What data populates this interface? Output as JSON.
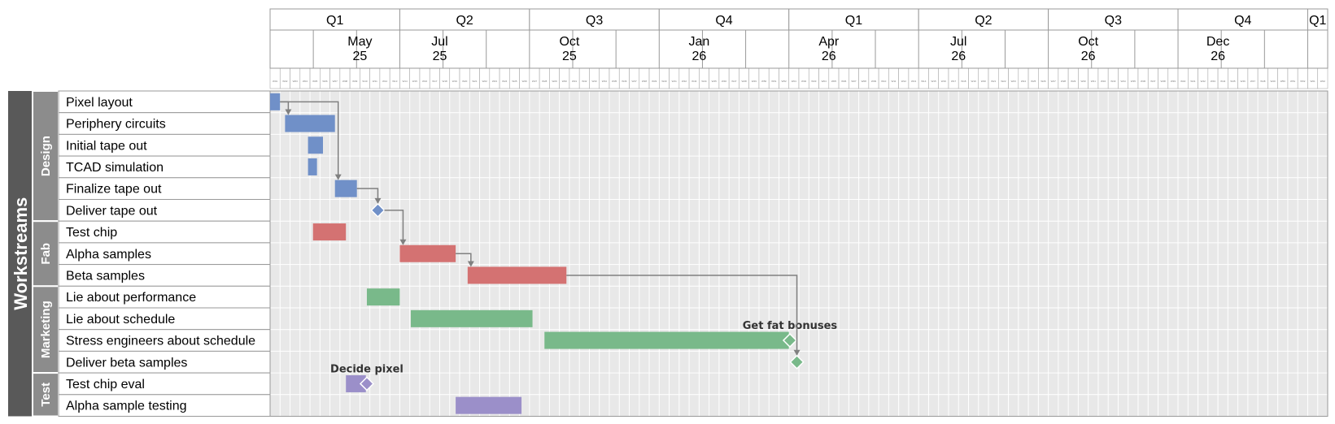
{
  "chart_data": {
    "type": "gantt",
    "workstreams_label": "Workstreams",
    "timeline": {
      "quarters": [
        "Q1",
        "Q2",
        "Q3",
        "Q4",
        "Q1",
        "Q2",
        "Q3",
        "Q4",
        "Q1"
      ],
      "month_labels": [
        {
          "week": 9,
          "month": "May",
          "year": "25"
        },
        {
          "week": 17,
          "month": "Jul",
          "year": "25"
        },
        {
          "week": 30,
          "month": "Oct",
          "year": "25"
        },
        {
          "week": 43,
          "month": "Jan",
          "year": "26"
        },
        {
          "week": 56,
          "month": "Apr",
          "year": "26"
        },
        {
          "week": 69,
          "month": "Jul",
          "year": "26"
        },
        {
          "week": 82,
          "month": "Oct",
          "year": "26"
        },
        {
          "week": 95,
          "month": "Dec",
          "year": "26"
        }
      ],
      "week_prefix": "W"
    },
    "groups": [
      {
        "name": "Design",
        "color": "#7090c8"
      },
      {
        "name": "Fab",
        "color": "#d47272"
      },
      {
        "name": "Marketing",
        "color": "#79b98a"
      },
      {
        "name": "Test",
        "color": "#9b8fc9"
      }
    ],
    "tasks": [
      {
        "name": "Pixel layout",
        "group": "Design",
        "start": 0,
        "end": 1
      },
      {
        "name": "Periphery circuits",
        "group": "Design",
        "start": 1.5,
        "end": 6.5
      },
      {
        "name": "Initial tape out",
        "group": "Design",
        "start": 3.8,
        "end": 5.3
      },
      {
        "name": "TCAD simulation",
        "group": "Design",
        "start": 3.8,
        "end": 4.7
      },
      {
        "name": "Finalize tape out",
        "group": "Design",
        "start": 6.5,
        "end": 8.7
      },
      {
        "name": "Deliver tape out",
        "group": "Design",
        "milestone": 10.8
      },
      {
        "name": "Test chip",
        "group": "Fab",
        "start": 4.3,
        "end": 7.6
      },
      {
        "name": "Alpha samples",
        "group": "Fab",
        "start": 13,
        "end": 18.6
      },
      {
        "name": "Beta samples",
        "group": "Fab",
        "start": 19.8,
        "end": 29.7
      },
      {
        "name": "Lie about performance",
        "group": "Marketing",
        "start": 9.7,
        "end": 13
      },
      {
        "name": "Lie about schedule",
        "group": "Marketing",
        "start": 14.1,
        "end": 26.3
      },
      {
        "name": "Stress engineers about schedule",
        "group": "Marketing",
        "start": 27.5,
        "end": 52,
        "milestone": 52.1,
        "label": "Get fat bonuses"
      },
      {
        "name": "Deliver beta samples",
        "group": "Marketing",
        "milestone": 52.8
      },
      {
        "name": "Test chip eval",
        "group": "Test",
        "start": 7.6,
        "end": 9.6,
        "milestone": 9.7,
        "label": "Decide pixel"
      },
      {
        "name": "Alpha sample testing",
        "group": "Test",
        "start": 18.6,
        "end": 25.2
      }
    ],
    "dependencies": [
      {
        "from": "Pixel layout",
        "to": "Periphery circuits"
      },
      {
        "from": "Pixel layout",
        "to": "Finalize tape out"
      },
      {
        "from": "Finalize tape out",
        "to": "Deliver tape out"
      },
      {
        "from": "Deliver tape out",
        "to": "Alpha samples"
      },
      {
        "from": "Alpha samples",
        "to": "Beta samples"
      },
      {
        "from": "Beta samples",
        "to": "Deliver beta samples"
      }
    ],
    "colors": {
      "grid_bg": "#e8e8e8",
      "grid_line": "#ffffff",
      "header_border": "#999999",
      "workstreams_bg": "#595959",
      "group_bg": "#8c8c8c",
      "arrow": "#808080"
    }
  }
}
